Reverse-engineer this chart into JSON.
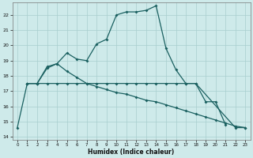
{
  "xlabel": "Humidex (Indice chaleur)",
  "bg_color": "#ceeaea",
  "grid_color": "#a8cece",
  "line_color": "#1a6060",
  "xlim": [
    -0.5,
    23.5
  ],
  "ylim": [
    13.8,
    22.8
  ],
  "yticks": [
    14,
    15,
    16,
    17,
    18,
    19,
    20,
    21,
    22
  ],
  "xticks": [
    0,
    1,
    2,
    3,
    4,
    5,
    6,
    7,
    8,
    9,
    10,
    11,
    12,
    13,
    14,
    15,
    16,
    17,
    18,
    19,
    20,
    21,
    22,
    23
  ],
  "line1_x": [
    0,
    1,
    2,
    3,
    4,
    5,
    6,
    7,
    8,
    9,
    10,
    11,
    12,
    13,
    14,
    15,
    16,
    17,
    18,
    19,
    20,
    21
  ],
  "line1_y": [
    14.6,
    17.5,
    17.5,
    18.6,
    18.8,
    19.5,
    19.1,
    19.0,
    20.1,
    20.4,
    22.0,
    22.2,
    22.2,
    22.3,
    22.6,
    19.8,
    18.4,
    17.5,
    17.5,
    16.3,
    16.3,
    14.8
  ],
  "line2_x": [
    1,
    2,
    3,
    4,
    5,
    6,
    7,
    8,
    9,
    10,
    11,
    12,
    13,
    14,
    15,
    16,
    17,
    18,
    22,
    23
  ],
  "line2_y": [
    17.5,
    17.5,
    17.5,
    17.5,
    17.5,
    17.5,
    17.5,
    17.5,
    17.5,
    17.5,
    17.5,
    17.5,
    17.5,
    17.5,
    17.5,
    17.5,
    17.5,
    17.5,
    14.6,
    14.6
  ],
  "line3_x": [
    1,
    2,
    3,
    4,
    5,
    6,
    7,
    8,
    9,
    10,
    11,
    12,
    13,
    14,
    15,
    16,
    17,
    18,
    19,
    20,
    21,
    22,
    23
  ],
  "line3_y": [
    17.5,
    17.5,
    18.5,
    18.8,
    18.3,
    17.9,
    17.5,
    17.3,
    17.1,
    16.9,
    16.8,
    16.6,
    16.4,
    16.3,
    16.1,
    15.9,
    15.7,
    15.5,
    15.3,
    15.1,
    14.9,
    14.7,
    14.6
  ]
}
